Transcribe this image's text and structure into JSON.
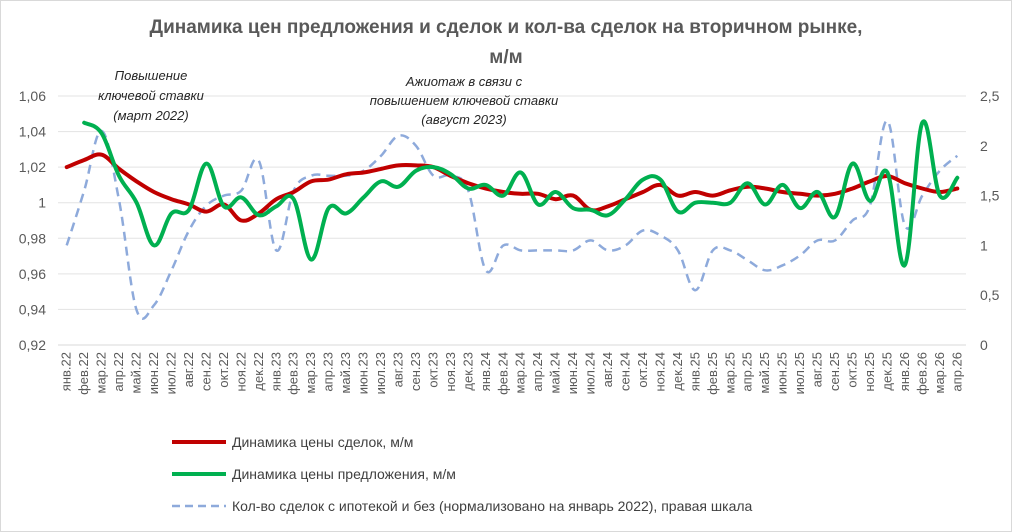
{
  "chart_data": {
    "type": "line",
    "title_line1": "Динамика цен предложения и сделок и кол-ва сделок на вторичном рынке,",
    "title_line2": "м/м",
    "x": [
      "янв.22",
      "фев.22",
      "мар.22",
      "апр.22",
      "май.22",
      "июн.22",
      "июл.22",
      "авг.22",
      "сен.22",
      "окт.22",
      "ноя.22",
      "дек.22",
      "янв.23",
      "фев.23",
      "мар.23",
      "апр.23",
      "май.23",
      "июн.23",
      "июл.23",
      "авг.23",
      "сен.23",
      "окт.23",
      "ноя.23",
      "дек.23",
      "янв.24",
      "фев.24",
      "мар.24",
      "апр.24",
      "май.24",
      "июн.24",
      "июл.24",
      "авг.24",
      "сен.24",
      "окт.24",
      "ноя.24",
      "дек.24",
      "янв.25",
      "фев.25",
      "мар.25",
      "апр.25",
      "май.25",
      "июн.25",
      "июл.25",
      "авг.25",
      "сен.25",
      "окт.25",
      "ноя.25",
      "дек.25",
      "янв.26",
      "фев.26",
      "мар.26",
      "апр.26"
    ],
    "y_left": {
      "range": [
        0.92,
        1.06
      ],
      "ticks": [
        "0,92",
        "0,94",
        "0,96",
        "0,98",
        "1",
        "1,02",
        "1,04",
        "1,06"
      ]
    },
    "y_right": {
      "range": [
        0,
        2.5
      ],
      "ticks": [
        "0",
        "0,5",
        "1",
        "1,5",
        "2",
        "2,5"
      ]
    },
    "grid": "horizontal",
    "legend_position": "bottom",
    "series": [
      {
        "name": "Динамика цены сделок, м/м",
        "axis": "left",
        "color": "#c00000",
        "style": "solid",
        "values": [
          1.02,
          1.024,
          1.027,
          1.019,
          1.012,
          1.006,
          1.002,
          0.999,
          0.995,
          0.999,
          0.99,
          0.994,
          1.002,
          1.006,
          1.012,
          1.013,
          1.016,
          1.017,
          1.019,
          1.021,
          1.021,
          1.02,
          1.015,
          1.011,
          1.008,
          1.006,
          1.005,
          1.005,
          1.002,
          1.004,
          0.996,
          0.998,
          1.002,
          1.006,
          1.01,
          1.004,
          1.006,
          1.004,
          1.007,
          1.009,
          1.008,
          1.006,
          1.005,
          1.004,
          1.005,
          1.008,
          1.012,
          1.015,
          1.011,
          1.008,
          1.006,
          1.008
        ]
      },
      {
        "name": "Динамика цены предложения, м/м",
        "axis": "left",
        "color": "#00b050",
        "style": "solid",
        "values": [
          null,
          1.045,
          1.039,
          1.015,
          1.0,
          0.976,
          0.994,
          0.996,
          1.022,
          0.998,
          1.003,
          0.993,
          0.998,
          1.002,
          0.968,
          0.997,
          0.994,
          1.003,
          1.012,
          1.009,
          1.018,
          1.02,
          1.016,
          1.008,
          1.01,
          1.004,
          1.017,
          0.999,
          1.006,
          0.997,
          0.996,
          0.993,
          1.002,
          1.013,
          1.013,
          0.995,
          1.0,
          1.0,
          1.0,
          1.011,
          0.999,
          1.01,
          0.997,
          1.006,
          0.992,
          1.022,
          1.001,
          1.017,
          0.965,
          1.045,
          1.004,
          1.014
        ]
      },
      {
        "name": "Кол-во сделок с ипотекой и без (нормализовано на январь 2022),  правая шкала",
        "axis": "right",
        "color": "#8eaadb",
        "style": "dashed",
        "values": [
          1.0,
          1.55,
          2.15,
          1.45,
          0.35,
          0.4,
          0.75,
          1.15,
          1.4,
          1.5,
          1.55,
          1.85,
          0.95,
          1.55,
          1.7,
          1.7,
          1.7,
          1.75,
          1.9,
          2.1,
          2.0,
          1.7,
          1.7,
          1.55,
          0.75,
          1.0,
          0.95,
          0.95,
          0.95,
          0.95,
          1.05,
          0.95,
          1.0,
          1.15,
          1.1,
          0.95,
          0.55,
          0.95,
          0.95,
          0.85,
          0.75,
          0.8,
          0.9,
          1.05,
          1.05,
          1.25,
          1.4,
          2.25,
          1.2,
          1.5,
          1.75,
          1.9
        ]
      }
    ],
    "annotations": [
      {
        "lines": [
          "Повышение",
          "ключевой ставки",
          "(март 2022)"
        ]
      },
      {
        "lines": [
          "Ажиотаж в связи с",
          "повышением ключевой ставки",
          "(август 2023)"
        ]
      }
    ]
  }
}
